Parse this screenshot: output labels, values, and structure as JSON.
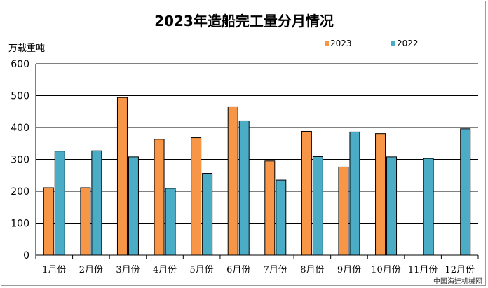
{
  "chart_data": {
    "type": "bar",
    "title": "2023年造船完工量分月情况",
    "ylabel": "万载重吨",
    "xlabel": "",
    "categories": [
      "1月份",
      "2月份",
      "3月份",
      "4月份",
      "5月份",
      "6月份",
      "7月份",
      "8月份",
      "9月份",
      "10月份",
      "11月份",
      "12月份"
    ],
    "series": [
      {
        "name": "2023",
        "color": "#f79646",
        "values": [
          211,
          211,
          494,
          363,
          368,
          465,
          295,
          388,
          276,
          381,
          null,
          null
        ]
      },
      {
        "name": "2022",
        "color": "#4bacc6",
        "values": [
          326,
          327,
          308,
          209,
          256,
          421,
          235,
          309,
          386,
          308,
          303,
          396
        ]
      }
    ],
    "ylim": [
      0,
      600
    ],
    "yticks": [
      0,
      100,
      200,
      300,
      400,
      500,
      600
    ],
    "grid": "horizontal",
    "legend": "top-right"
  },
  "watermark": "中国海娃机械网"
}
